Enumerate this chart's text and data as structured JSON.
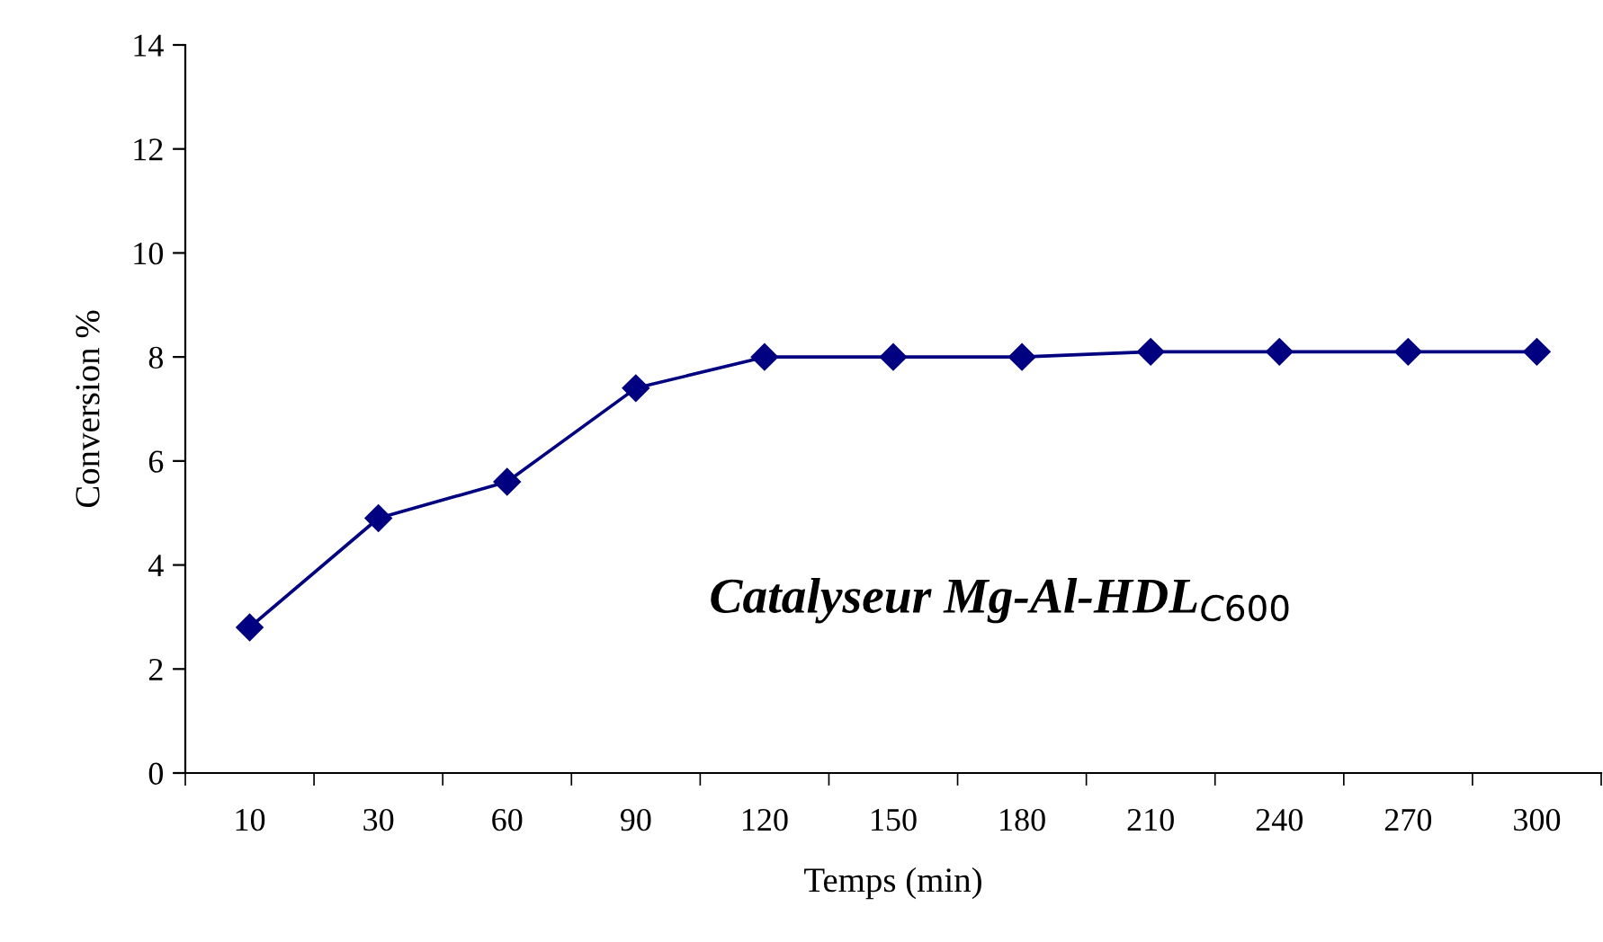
{
  "chart_data": {
    "type": "line",
    "xlabel": "Temps (min)",
    "ylabel": "Conversion %",
    "categories": [
      "10",
      "30",
      "60",
      "90",
      "120",
      "150",
      "180",
      "210",
      "240",
      "270",
      "300"
    ],
    "series": [
      {
        "color": "#000080",
        "values": [
          2.8,
          4.9,
          5.6,
          7.4,
          8.0,
          8.0,
          8.0,
          8.1,
          8.1,
          8.1,
          8.1
        ]
      }
    ],
    "ylim": [
      0,
      14
    ],
    "yticks": [
      0,
      2,
      4,
      6,
      8,
      10,
      12,
      14
    ],
    "marker": "diamond",
    "line_style": "solid",
    "grid": false,
    "legend": false,
    "annotations": [
      "Catalyseur Mg-Al-HDL$_{C600}$"
    ]
  }
}
